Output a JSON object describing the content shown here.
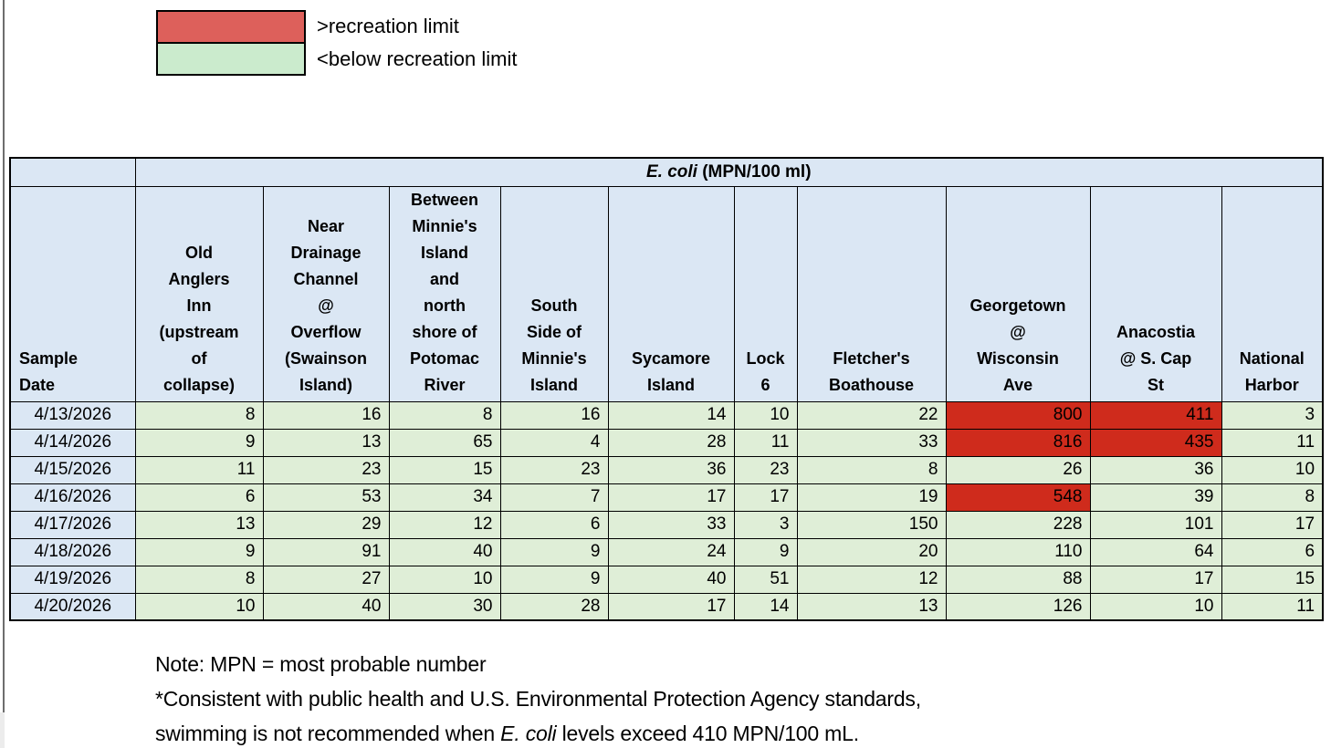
{
  "legend": {
    "above_label": ">recreation limit",
    "below_label": "<below recreation limit",
    "above_color": "#DD605B",
    "below_color": "#CBEBCD"
  },
  "table": {
    "title_italic": "E. coli",
    "title_rest": " (MPN/100 ml)",
    "row_header": "Sample\nDate",
    "columns": [
      "Old\nAnglers\nInn\n(upstream\nof\ncollapse)",
      "Near\nDrainage\nChannel\n@\nOverflow\n(Swainson\nIsland)",
      "Between\nMinnie's\nIsland\nand\nnorth\nshore of\nPotomac\nRiver",
      "South\nSide of\nMinnie's\nIsland",
      "Sycamore\nIsland",
      "Lock\n6",
      "Fletcher's\nBoathouse",
      "Georgetown\n@\nWisconsin\nAve",
      "Anacostia\n@ S. Cap\nSt",
      "National\nHarbor"
    ],
    "recreation_limit": 410,
    "rows": [
      {
        "date": "4/13/2026",
        "values": [
          8,
          16,
          8,
          16,
          14,
          10,
          22,
          800,
          411,
          3
        ]
      },
      {
        "date": "4/14/2026",
        "values": [
          9,
          13,
          65,
          4,
          28,
          11,
          33,
          816,
          435,
          11
        ]
      },
      {
        "date": "4/15/2026",
        "values": [
          11,
          23,
          15,
          23,
          36,
          23,
          8,
          26,
          36,
          10
        ]
      },
      {
        "date": "4/16/2026",
        "values": [
          6,
          53,
          34,
          7,
          17,
          17,
          19,
          548,
          39,
          8
        ]
      },
      {
        "date": "4/17/2026",
        "values": [
          13,
          29,
          12,
          6,
          33,
          3,
          150,
          228,
          101,
          17
        ]
      },
      {
        "date": "4/18/2026",
        "values": [
          9,
          91,
          40,
          9,
          24,
          9,
          20,
          110,
          64,
          6
        ]
      },
      {
        "date": "4/19/2026",
        "values": [
          8,
          27,
          10,
          9,
          40,
          51,
          12,
          88,
          17,
          15
        ]
      },
      {
        "date": "4/20/2026",
        "values": [
          10,
          40,
          30,
          28,
          17,
          14,
          13,
          126,
          10,
          11
        ]
      }
    ],
    "colors": {
      "header_bg": "#DBE7F4",
      "below_bg": "#DFEED7",
      "above_bg": "#CF2B1C"
    }
  },
  "notes": {
    "line1": "Note: MPN = most probable number",
    "line2": "*Consistent with public health and U.S. Environmental Protection Agency standards,",
    "line3_pre": "swimming is not recommended when ",
    "line3_italic": "E. coli",
    "line3_post": " levels exceed 410 MPN/100 mL."
  }
}
